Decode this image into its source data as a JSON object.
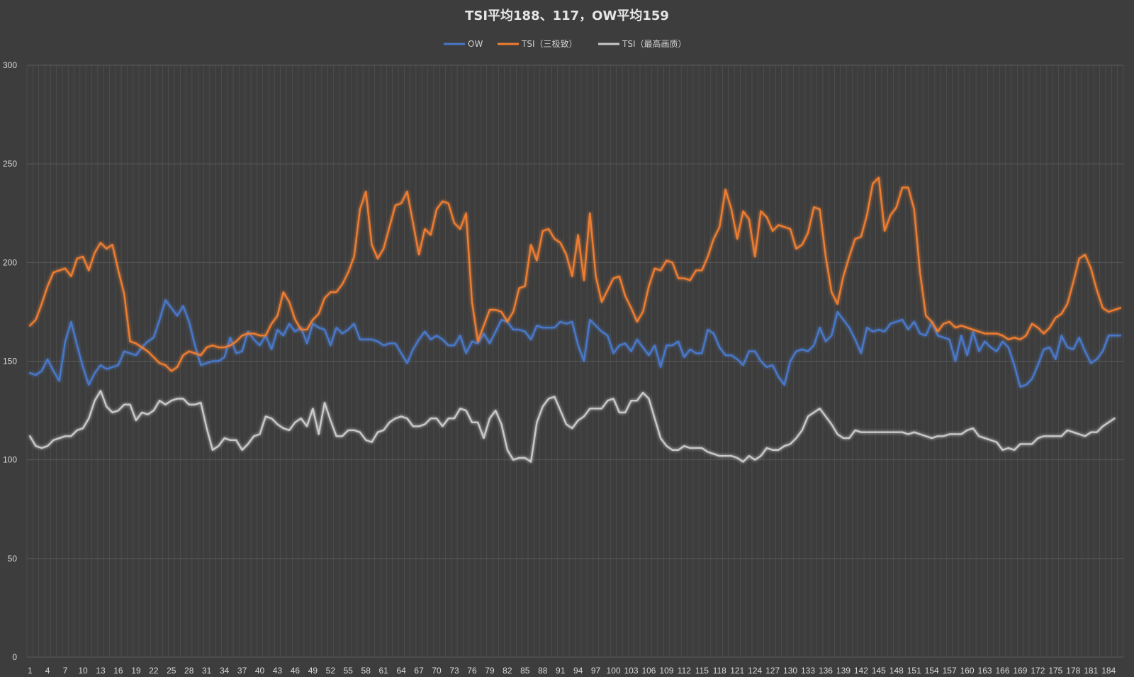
{
  "chart_data": {
    "type": "line",
    "title": "TSI平均188、117，OW平均159",
    "xlabel": "",
    "ylabel": "",
    "ylim": [
      0,
      300
    ],
    "yticks": [
      0,
      50,
      100,
      150,
      200,
      250,
      300
    ],
    "x_tick_labels": [
      "1",
      "4",
      "7",
      "10",
      "13",
      "16",
      "19",
      "22",
      "25",
      "28",
      "31",
      "34",
      "37",
      "40",
      "43",
      "46",
      "49",
      "52",
      "55",
      "58",
      "61",
      "64",
      "67",
      "70",
      "73",
      "76",
      "79",
      "82",
      "85",
      "88",
      "91",
      "94",
      "97",
      "100",
      "103",
      "106",
      "109",
      "112",
      "115",
      "118",
      "121",
      "124",
      "127",
      "130",
      "133",
      "136",
      "139",
      "142",
      "145",
      "148",
      "151",
      "154",
      "157",
      "160",
      "163",
      "166",
      "169",
      "172",
      "175",
      "178",
      "181",
      "184"
    ],
    "x_count": 186,
    "grid": true,
    "legend_position": "top",
    "series": [
      {
        "name": "OW",
        "color": "#4a78c9",
        "values": [
          144,
          143,
          145,
          151,
          145,
          140,
          160,
          170,
          158,
          147,
          138,
          144,
          148,
          146,
          147,
          148,
          155,
          154,
          153,
          157,
          160,
          162,
          171,
          181,
          177,
          173,
          178,
          170,
          158,
          148,
          149,
          150,
          150,
          152,
          162,
          154,
          155,
          165,
          161,
          158,
          163,
          156,
          166,
          163,
          169,
          165,
          167,
          159,
          169,
          167,
          166,
          158,
          167,
          164,
          166,
          169,
          161,
          161,
          161,
          160,
          158,
          159,
          159,
          154,
          149,
          156,
          161,
          165,
          161,
          163,
          161,
          158,
          158,
          163,
          154,
          160,
          159,
          164,
          159,
          165,
          171,
          170,
          166,
          166,
          165,
          161,
          168,
          167,
          167,
          167,
          170,
          169,
          170,
          158,
          150,
          171,
          168,
          165,
          163,
          154,
          158,
          159,
          155,
          161,
          157,
          153,
          158,
          147,
          158,
          158,
          160,
          152,
          156,
          154,
          154,
          166,
          164,
          157,
          153,
          153,
          151,
          148,
          155,
          155,
          150,
          147,
          148,
          142,
          138,
          150,
          155,
          156,
          155,
          158,
          167,
          160,
          163,
          175,
          171,
          167,
          161,
          154,
          167,
          165,
          166,
          165,
          169,
          170,
          171,
          166,
          170,
          164,
          163,
          170,
          163,
          162,
          161,
          150,
          163,
          153,
          165,
          155,
          160,
          157,
          155,
          160,
          157,
          148,
          137,
          138,
          141,
          148,
          156,
          157,
          151,
          163,
          157,
          156,
          162,
          155,
          149,
          151,
          155,
          163,
          163,
          163
        ]
      },
      {
        "name": "TSI（三极致）",
        "color": "#ed7d31",
        "values": [
          168,
          171,
          179,
          188,
          195,
          196,
          197,
          193,
          202,
          203,
          196,
          205,
          210,
          207,
          209,
          196,
          184,
          160,
          159,
          157,
          155,
          152,
          149,
          148,
          145,
          147,
          153,
          155,
          154,
          153,
          157,
          158,
          157,
          157,
          158,
          160,
          163,
          164,
          164,
          163,
          163,
          169,
          173,
          185,
          180,
          171,
          166,
          166,
          171,
          174,
          182,
          185,
          185,
          189,
          195,
          203,
          227,
          236,
          209,
          202,
          207,
          218,
          229,
          230,
          236,
          220,
          204,
          217,
          214,
          227,
          231,
          230,
          220,
          217,
          225,
          180,
          160,
          168,
          176,
          176,
          175,
          170,
          175,
          187,
          188,
          209,
          201,
          216,
          217,
          212,
          210,
          204,
          193,
          214,
          191,
          225,
          193,
          180,
          186,
          192,
          193,
          183,
          177,
          170,
          175,
          188,
          197,
          196,
          201,
          200,
          192,
          192,
          191,
          196,
          196,
          203,
          212,
          218,
          237,
          227,
          212,
          226,
          222,
          203,
          226,
          223,
          216,
          219,
          218,
          217,
          207,
          209,
          215,
          228,
          227,
          203,
          185,
          179,
          193,
          203,
          212,
          213,
          224,
          240,
          243,
          216,
          224,
          228,
          238,
          238,
          227,
          195,
          173,
          170,
          165,
          169,
          170,
          167,
          168,
          167,
          166,
          165,
          164,
          164,
          164,
          163,
          161,
          162,
          161,
          163,
          169,
          167,
          164,
          167,
          172,
          174,
          179,
          190,
          202,
          204,
          197,
          186,
          177,
          175,
          176,
          177
        ]
      },
      {
        "name": "TSI（最高画质）",
        "color": "#c8c8c8",
        "values": [
          112,
          107,
          106,
          107,
          110,
          111,
          112,
          112,
          115,
          116,
          121,
          130,
          135,
          127,
          124,
          125,
          128,
          128,
          120,
          124,
          123,
          125,
          130,
          128,
          130,
          131,
          131,
          128,
          128,
          129,
          116,
          105,
          107,
          111,
          110,
          110,
          105,
          108,
          112,
          113,
          122,
          121,
          118,
          116,
          115,
          119,
          121,
          117,
          126,
          113,
          129,
          120,
          112,
          112,
          115,
          115,
          114,
          110,
          109,
          114,
          115,
          119,
          121,
          122,
          121,
          117,
          117,
          118,
          121,
          121,
          117,
          121,
          121,
          126,
          125,
          119,
          119,
          111,
          121,
          125,
          118,
          105,
          100,
          101,
          101,
          99,
          119,
          127,
          131,
          132,
          125,
          118,
          116,
          120,
          122,
          126,
          126,
          126,
          130,
          131,
          124,
          124,
          130,
          130,
          134,
          131,
          121,
          111,
          107,
          105,
          105,
          107,
          106,
          106,
          106,
          104,
          103,
          102,
          102,
          102,
          101,
          99,
          102,
          100,
          102,
          106,
          105,
          105,
          107,
          108,
          111,
          115,
          122,
          124,
          126,
          122,
          118,
          113,
          111,
          111,
          115,
          114,
          114,
          114,
          114,
          114,
          114,
          114,
          114,
          113,
          114,
          113,
          112,
          111,
          112,
          112,
          113,
          113,
          113,
          115,
          116,
          112,
          111,
          110,
          109,
          105,
          106,
          105,
          108,
          108,
          108,
          111,
          112,
          112,
          112,
          112,
          115,
          114,
          113,
          112,
          114,
          114,
          117,
          119,
          121
        ]
      }
    ]
  }
}
